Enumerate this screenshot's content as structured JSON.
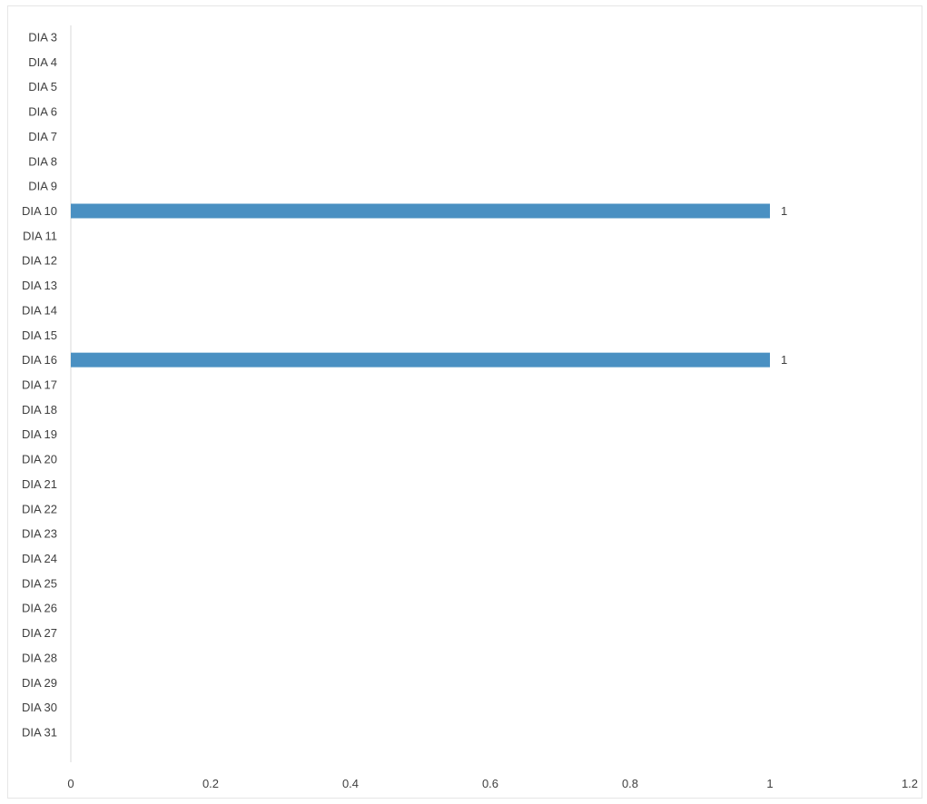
{
  "chart_data": {
    "type": "bar",
    "orientation": "horizontal",
    "title": "",
    "xlabel": "",
    "ylabel": "",
    "categories": [
      "DIA 3",
      "DIA 4",
      "DIA 5",
      "DIA 6",
      "DIA 7",
      "DIA 8",
      "DIA 9",
      "DIA 10",
      "DIA 11",
      "DIA 12",
      "DIA 13",
      "DIA 14",
      "DIA 15",
      "DIA 16",
      "DIA 17",
      "DIA 18",
      "DIA 19",
      "DIA 20",
      "DIA 21",
      "DIA 22",
      "DIA 23",
      "DIA 24",
      "DIA 25",
      "DIA 26",
      "DIA 27",
      "DIA 28",
      "DIA 29",
      "DIA 30",
      "DIA 31"
    ],
    "values": [
      null,
      null,
      null,
      null,
      null,
      null,
      null,
      1,
      null,
      null,
      null,
      null,
      null,
      1,
      null,
      null,
      null,
      null,
      null,
      null,
      null,
      null,
      null,
      null,
      null,
      null,
      null,
      null,
      null
    ],
    "data_labels": [
      "",
      "",
      "",
      "",
      "",
      "",
      "",
      "1",
      "",
      "",
      "",
      "",
      "",
      "1",
      "",
      "",
      "",
      "",
      "",
      "",
      "",
      "",
      "",
      "",
      "",
      "",
      "",
      "",
      ""
    ],
    "xlim": [
      0,
      1.2
    ],
    "x_ticks": [
      "0",
      "0.2",
      "0.4",
      "0.6",
      "0.8",
      "1",
      "1.2"
    ],
    "grid": false,
    "legend": "none",
    "bar_color": "#4a90c2"
  }
}
